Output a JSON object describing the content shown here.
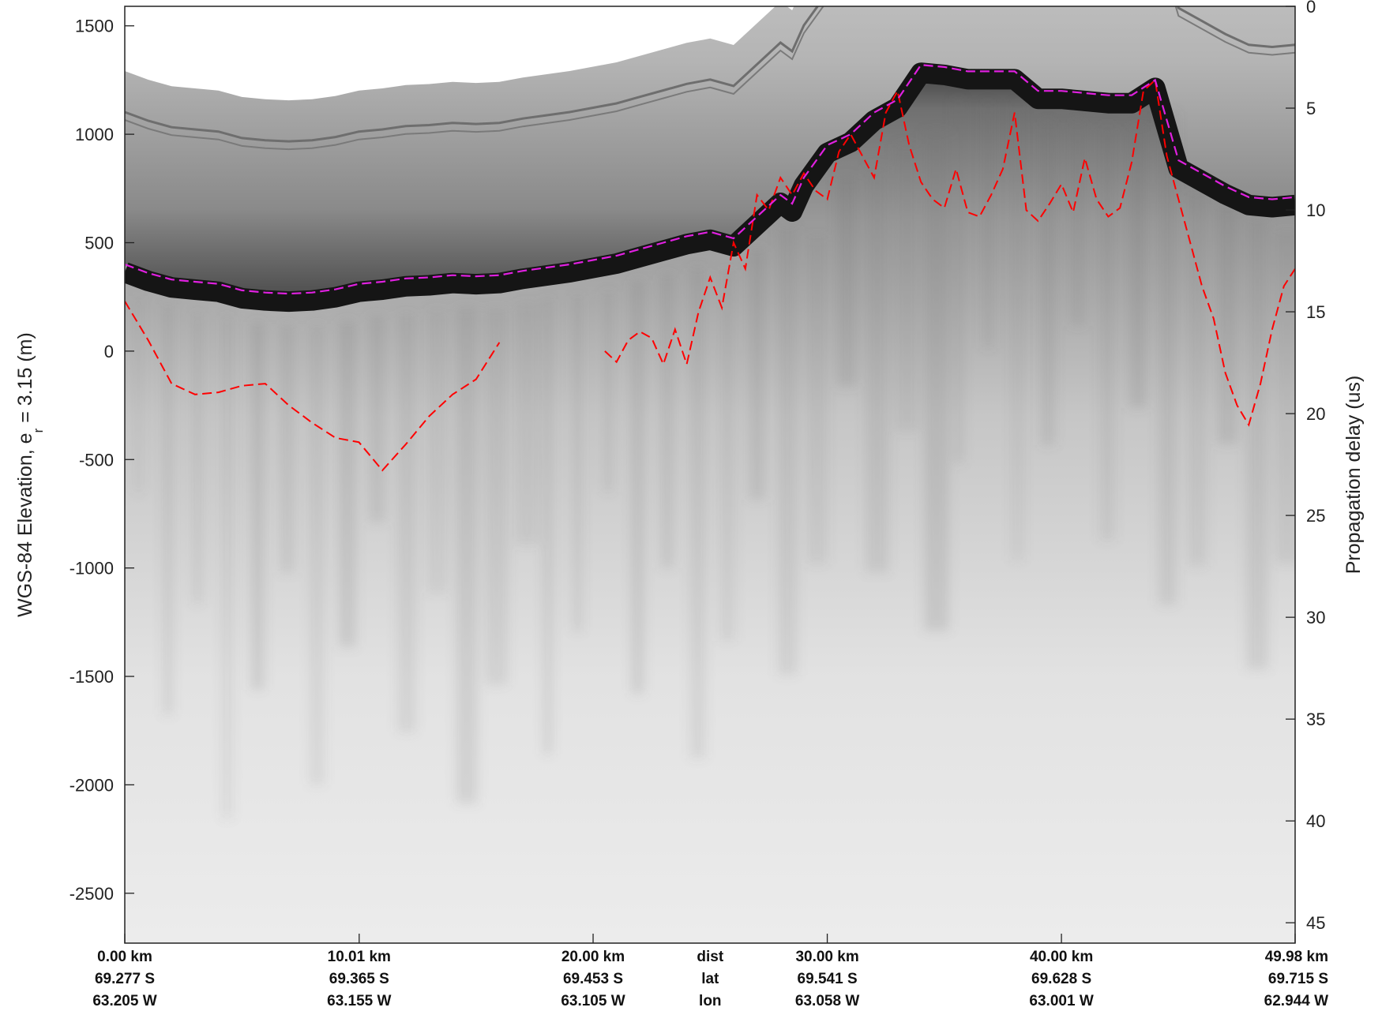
{
  "chart_data": {
    "type": "heatmap",
    "title": "",
    "ylabel": "WGS-84 Elevation, e",
    "ylabel_subscript": "r",
    "ylabel_suffix": " = 3.15 (m)",
    "y2label": "Propagation delay (us)",
    "ylim": [
      -2730,
      1590
    ],
    "y2lim": [
      0,
      46
    ],
    "y_ticks": [
      1500,
      1000,
      500,
      0,
      -500,
      -1000,
      -1500,
      -2000,
      -2500
    ],
    "y_tick_labels": [
      "1500",
      "1000",
      "500",
      "0",
      "-500",
      "-1000",
      "-1500",
      "-2000",
      "-2500"
    ],
    "y2_ticks": [
      0,
      5,
      10,
      15,
      20,
      25,
      30,
      35,
      40,
      45
    ],
    "y2_tick_labels": [
      "0",
      "5",
      "10",
      "15",
      "20",
      "25",
      "30",
      "35",
      "40",
      "45"
    ],
    "xlim": [
      0,
      49.98
    ],
    "x_ticks": [
      0,
      10.01,
      20.0,
      30.0,
      40.0,
      49.98
    ],
    "x_row_labels": {
      "dist": [
        "0.00 km",
        "10.01 km",
        "20.00 km",
        "30.00 km",
        "40.00 km",
        "49.98 km"
      ],
      "lat": [
        "69.277 S",
        "69.365 S",
        "69.453 S",
        "69.541 S",
        "69.628 S",
        "69.715 S"
      ],
      "lon": [
        "63.205 W",
        "63.155 W",
        "63.105 W",
        "63.058 W",
        "63.001 W",
        "62.944 W"
      ]
    },
    "x_row_names": [
      "dist",
      "lat",
      "lon"
    ],
    "colormap": "gray",
    "grid": false,
    "surface_line_color": "#e020e0",
    "bed_line_color": "#ff0000",
    "series": [
      {
        "name": "",
        "role": "surface",
        "x": [
          0,
          1,
          2,
          3,
          4,
          5,
          6,
          7,
          8,
          9,
          10,
          11,
          12,
          13,
          14,
          15,
          16,
          17,
          18,
          19,
          20,
          21,
          22,
          23,
          24,
          25,
          26,
          27,
          28,
          28.5,
          29,
          30,
          31,
          32,
          33,
          34,
          35,
          36,
          37,
          38,
          39,
          40,
          41,
          42,
          43,
          44,
          45,
          46,
          47,
          48,
          49,
          49.98
        ],
        "y": [
          400,
          360,
          330,
          320,
          310,
          280,
          270,
          265,
          270,
          285,
          310,
          320,
          335,
          340,
          350,
          345,
          350,
          370,
          385,
          400,
          420,
          440,
          470,
          500,
          530,
          550,
          520,
          620,
          720,
          680,
          800,
          950,
          1000,
          1100,
          1160,
          1320,
          1310,
          1290,
          1290,
          1290,
          1200,
          1200,
          1190,
          1180,
          1180,
          1250,
          880,
          820,
          760,
          710,
          700,
          710
        ]
      },
      {
        "name": "",
        "role": "bed",
        "x": [
          0,
          1,
          2,
          3,
          4,
          5,
          6,
          7,
          8,
          9,
          10,
          11,
          12,
          13,
          14,
          15,
          16,
          null,
          20.5,
          21,
          21.5,
          22,
          22.5,
          23,
          23.5,
          24,
          24.5,
          25,
          25.5,
          26,
          26.5,
          27,
          27.5,
          28,
          28.5,
          29,
          29.5,
          30,
          30.5,
          31,
          31.5,
          32,
          32.5,
          33,
          33.5,
          34,
          34.5,
          35,
          35.5,
          36,
          36.5,
          37,
          37.5,
          38,
          38.5,
          39,
          39.5,
          40,
          40.5,
          41,
          41.5,
          42,
          42.5,
          43,
          43.5,
          44,
          44.5,
          45,
          45.5,
          46,
          46.5,
          47,
          47.5,
          48,
          48.5,
          49,
          49.5,
          49.98
        ],
        "y": [
          230,
          50,
          -150,
          -200,
          -190,
          -160,
          -150,
          -250,
          -330,
          -400,
          -420,
          -550,
          -430,
          -300,
          -200,
          -130,
          40,
          null,
          0,
          -50,
          50,
          90,
          60,
          -60,
          100,
          -60,
          180,
          340,
          200,
          500,
          380,
          720,
          650,
          800,
          720,
          820,
          740,
          700,
          920,
          1000,
          900,
          800,
          1100,
          1200,
          950,
          780,
          700,
          660,
          840,
          640,
          620,
          720,
          840,
          1100,
          650,
          600,
          680,
          770,
          640,
          890,
          700,
          620,
          660,
          870,
          1200,
          1250,
          900,
          700,
          500,
          300,
          150,
          -100,
          -250,
          -340,
          -150,
          100,
          300,
          380
        ]
      }
    ]
  }
}
